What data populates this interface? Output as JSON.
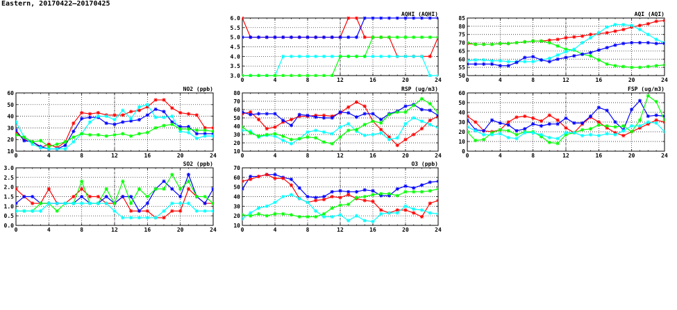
{
  "title": "Eastern, 20170422–20170425",
  "series_colors": {
    "red": "#ff0000",
    "blue": "#0000ff",
    "cyan": "#00ffff",
    "green": "#00ff00"
  },
  "chart_data": [
    {
      "id": "aqhi",
      "type": "line",
      "title": "AQHI (AQHI)",
      "xlim": [
        0,
        24
      ],
      "ylim": [
        3,
        6
      ],
      "yticks": [
        "3.0",
        "3.5",
        "4.0",
        "4.5",
        "5.0",
        "5.5",
        "6.0"
      ],
      "xticks": [
        "0",
        "4",
        "8",
        "12",
        "16",
        "20",
        "24"
      ],
      "grid": true,
      "series": [
        {
          "name": "red",
          "values": [
            6,
            5,
            5,
            5,
            5,
            5,
            5,
            5,
            5,
            5,
            5,
            5,
            5,
            6,
            6,
            5,
            5,
            5,
            5,
            4,
            4,
            4,
            4,
            4,
            5
          ]
        },
        {
          "name": "blue",
          "values": [
            5,
            5,
            5,
            5,
            5,
            5,
            5,
            5,
            5,
            5,
            5,
            5,
            5,
            5,
            5,
            6,
            6,
            6,
            6,
            6,
            6,
            6,
            6,
            6,
            6
          ]
        },
        {
          "name": "cyan",
          "values": [
            3,
            3,
            3,
            3,
            3,
            4,
            4,
            4,
            4,
            4,
            4,
            4,
            4,
            4,
            4,
            4,
            4,
            4,
            4,
            4,
            4,
            4,
            4,
            3,
            3
          ]
        },
        {
          "name": "green",
          "values": [
            3,
            3,
            3,
            3,
            3,
            3,
            3,
            3,
            3,
            3,
            3,
            3,
            4,
            4,
            4,
            4,
            5,
            5,
            5,
            5,
            5,
            5,
            5,
            5,
            5
          ]
        }
      ]
    },
    {
      "id": "aqi",
      "type": "line",
      "title": "AQI (AQI)",
      "xlim": [
        0,
        24
      ],
      "ylim": [
        50,
        85
      ],
      "yticks": [
        "50",
        "55",
        "60",
        "65",
        "70",
        "75",
        "80",
        "85"
      ],
      "xticks": [
        "0",
        "4",
        "8",
        "12",
        "16",
        "20",
        "24"
      ],
      "grid": true,
      "series": [
        {
          "name": "red",
          "values": [
            69.5,
            69,
            69,
            69,
            69.5,
            69.5,
            70,
            70.5,
            71,
            71,
            71.5,
            72,
            73,
            73.5,
            74,
            75,
            75.5,
            76,
            77,
            78,
            79.5,
            80.5,
            81.5,
            83,
            83.5
          ]
        },
        {
          "name": "green",
          "values": [
            70,
            69,
            69,
            69,
            69.5,
            69.5,
            70,
            70.5,
            71,
            71,
            70,
            68,
            66,
            65.5,
            63,
            62,
            59.5,
            57,
            56,
            55.5,
            55,
            55,
            55.5,
            56,
            56.5
          ]
        },
        {
          "name": "cyan",
          "values": [
            59,
            59.5,
            59.5,
            59,
            59,
            58.5,
            58.5,
            58.5,
            58.5,
            59.5,
            60.5,
            62.5,
            64.5,
            66,
            70,
            73,
            76,
            79.5,
            81,
            81,
            80.5,
            78,
            75,
            72,
            70
          ]
        },
        {
          "name": "blue",
          "values": [
            57,
            57,
            57,
            57,
            56,
            56,
            58,
            61,
            61.5,
            59.5,
            58.5,
            60,
            61,
            62,
            63,
            64,
            65.5,
            67,
            68.5,
            69.5,
            70,
            70,
            70,
            69.5,
            69.5
          ]
        }
      ]
    },
    {
      "id": "no2",
      "type": "line",
      "title": "NO2 (ppb)",
      "xlim": [
        0,
        24
      ],
      "ylim": [
        10,
        60
      ],
      "yticks": [
        "10",
        "20",
        "30",
        "40",
        "50",
        "60"
      ],
      "xticks": [
        "0",
        "4",
        "8",
        "12",
        "16",
        "20",
        "24"
      ],
      "grid": true,
      "series": [
        {
          "name": "red",
          "values": [
            26,
            20,
            18,
            13,
            16,
            13,
            18,
            34,
            43,
            42,
            43,
            41,
            41,
            41,
            44,
            45,
            48,
            54,
            54,
            47,
            43,
            42,
            41,
            30,
            30
          ]
        },
        {
          "name": "blue",
          "values": [
            28,
            19,
            18,
            14,
            12,
            12,
            15,
            27,
            38,
            39,
            39,
            34,
            33,
            35,
            36,
            37,
            41,
            46,
            44,
            35,
            31,
            31,
            25,
            25,
            25
          ]
        },
        {
          "name": "cyan",
          "values": [
            35,
            22,
            16,
            13,
            12,
            12,
            12,
            18,
            25,
            35,
            40,
            40,
            37,
            45,
            38,
            48,
            50,
            39,
            39,
            40,
            27,
            26,
            21,
            23,
            23
          ]
        },
        {
          "name": "green",
          "values": [
            24,
            22,
            18,
            19,
            14,
            16,
            18,
            22,
            25,
            24,
            24,
            23,
            24,
            25,
            23,
            25,
            26,
            30,
            32,
            33,
            29,
            29,
            28,
            28,
            27
          ]
        }
      ]
    },
    {
      "id": "rsp",
      "type": "line",
      "title": "RSP (ug/m3)",
      "xlim": [
        0,
        24
      ],
      "ylim": [
        10,
        80
      ],
      "yticks": [
        "10",
        "20",
        "30",
        "40",
        "50",
        "60",
        "70",
        "80"
      ],
      "xticks": [
        "0",
        "4",
        "8",
        "12",
        "16",
        "20",
        "24"
      ],
      "grid": true,
      "series": [
        {
          "name": "red",
          "values": [
            55,
            57,
            48,
            37,
            39,
            45,
            48,
            52,
            52,
            53,
            53,
            52,
            56,
            63,
            69,
            64,
            46,
            36,
            27,
            17,
            24,
            30,
            37,
            47,
            52
          ]
        },
        {
          "name": "blue",
          "values": [
            57,
            54,
            55,
            55,
            55,
            47,
            41,
            54,
            53,
            51,
            50,
            50,
            57,
            56,
            51,
            55,
            55,
            48,
            55,
            58,
            64,
            66,
            60,
            59,
            53
          ]
        },
        {
          "name": "cyan",
          "values": [
            35,
            34,
            27,
            29,
            28,
            23,
            19,
            25,
            33,
            35,
            33,
            31,
            39,
            43,
            34,
            29,
            30,
            32,
            24,
            26,
            43,
            50,
            46,
            42,
            38
          ]
        },
        {
          "name": "green",
          "values": [
            39,
            32,
            28,
            30,
            31,
            28,
            24,
            25,
            27,
            26,
            21,
            19,
            27,
            35,
            36,
            42,
            46,
            44,
            54,
            57,
            57,
            65,
            73,
            67,
            56
          ]
        }
      ]
    },
    {
      "id": "fsp",
      "type": "line",
      "title": "FSP (ug/m3)",
      "xlim": [
        0,
        24
      ],
      "ylim": [
        0,
        60
      ],
      "yticks": [
        "0",
        "10",
        "20",
        "30",
        "40",
        "50",
        "60"
      ],
      "xticks": [
        "0",
        "4",
        "8",
        "12",
        "16",
        "20",
        "24"
      ],
      "grid": true,
      "series": [
        {
          "name": "red",
          "values": [
            36,
            30,
            21,
            20,
            22,
            30,
            35,
            36,
            34,
            31,
            37,
            32,
            24,
            19,
            28,
            35,
            30,
            24,
            19,
            16,
            20,
            24,
            28,
            32,
            30
          ]
        },
        {
          "name": "blue",
          "values": [
            32,
            22,
            21,
            32,
            29,
            27,
            21,
            23,
            28,
            26,
            28,
            28,
            34,
            29,
            29,
            36,
            45,
            42,
            30,
            22,
            43,
            52,
            36,
            37,
            36
          ]
        },
        {
          "name": "green",
          "values": [
            20,
            11,
            12,
            19,
            22,
            21,
            17,
            20,
            20,
            15,
            9,
            8,
            17,
            19,
            22,
            23,
            27,
            26,
            25,
            26,
            20,
            32,
            57,
            51,
            32
          ]
        },
        {
          "name": "cyan",
          "values": [
            25,
            21,
            17,
            17,
            18,
            14,
            13,
            19,
            19,
            17,
            14,
            13,
            19,
            19,
            16,
            17,
            16,
            18,
            17,
            21,
            26,
            26,
            30,
            29,
            20
          ]
        }
      ]
    },
    {
      "id": "so2",
      "type": "line",
      "title": "SO2 (ppb)",
      "xlim": [
        0,
        24
      ],
      "ylim": [
        0,
        3
      ],
      "yticks": [
        "0.0",
        "0.5",
        "1.0",
        "1.5",
        "2.0",
        "2.5",
        "3.0"
      ],
      "xticks": [
        "0",
        "4",
        "8",
        "12",
        "16",
        "20",
        "24"
      ],
      "grid": true,
      "series": [
        {
          "name": "red",
          "values": [
            1.9,
            1.5,
            1.15,
            1.15,
            1.9,
            1.15,
            1.15,
            1.5,
            1.9,
            1.5,
            1.5,
            1.15,
            1.15,
            1.5,
            0.75,
            0.75,
            0.75,
            0.4,
            0.4,
            0.75,
            0.75,
            1.9,
            1.5,
            1.15,
            1.15
          ]
        },
        {
          "name": "blue",
          "values": [
            1.15,
            1.5,
            1.5,
            1.15,
            1.15,
            1.15,
            1.15,
            1.15,
            1.5,
            1.15,
            1.15,
            1.5,
            1.15,
            1.5,
            1.5,
            0.75,
            1.15,
            1.9,
            2.3,
            1.9,
            1.5,
            2.65,
            1.5,
            1.15,
            1.9
          ]
        },
        {
          "name": "green",
          "values": [
            0.75,
            0.75,
            0.75,
            1.15,
            1.15,
            0.75,
            1.15,
            1.15,
            2.3,
            1.15,
            1.15,
            1.9,
            1.15,
            2.3,
            1.15,
            1.9,
            1.5,
            1.9,
            1.9,
            2.65,
            1.9,
            2.3,
            1.5,
            1.5,
            1.15
          ]
        },
        {
          "name": "cyan",
          "values": [
            0.75,
            0.75,
            0.75,
            0.75,
            1.15,
            1.15,
            1.15,
            1.15,
            1.15,
            1.15,
            1.15,
            1.15,
            0.75,
            0.4,
            0.4,
            0.4,
            0.4,
            0.4,
            0.75,
            1.15,
            1.15,
            1.15,
            0.75,
            0.75,
            0.75
          ]
        }
      ]
    },
    {
      "id": "o3",
      "type": "line",
      "title": "O3 (ppb)",
      "xlim": [
        0,
        24
      ],
      "ylim": [
        10,
        70
      ],
      "yticks": [
        "10",
        "20",
        "30",
        "40",
        "50",
        "60",
        "70"
      ],
      "xticks": [
        "0",
        "4",
        "8",
        "12",
        "16",
        "20",
        "24"
      ],
      "grid": true,
      "series": [
        {
          "name": "blue",
          "values": [
            48,
            61,
            61,
            63,
            63,
            60,
            58,
            49,
            40,
            39,
            40,
            45,
            46,
            45,
            45,
            47,
            46,
            41,
            41,
            48,
            51,
            49,
            52,
            55,
            56
          ]
        },
        {
          "name": "red",
          "values": [
            56,
            58,
            61,
            63,
            59,
            59,
            52,
            38,
            34,
            36,
            37,
            40,
            39,
            42,
            38,
            36,
            35,
            26,
            23,
            26,
            26,
            23,
            19,
            33,
            36
          ]
        },
        {
          "name": "cyan",
          "values": [
            17,
            23,
            28,
            30,
            34,
            40,
            42,
            38,
            34,
            25,
            19,
            19,
            21,
            15,
            20,
            15,
            14,
            22,
            23,
            23,
            30,
            27,
            26,
            23,
            22
          ]
        },
        {
          "name": "green",
          "values": [
            21,
            20,
            22,
            20,
            22,
            22,
            21,
            19,
            19,
            19,
            22,
            28,
            31,
            32,
            39,
            40,
            42,
            43,
            43,
            41,
            45,
            45,
            45,
            46,
            48
          ]
        }
      ]
    }
  ]
}
